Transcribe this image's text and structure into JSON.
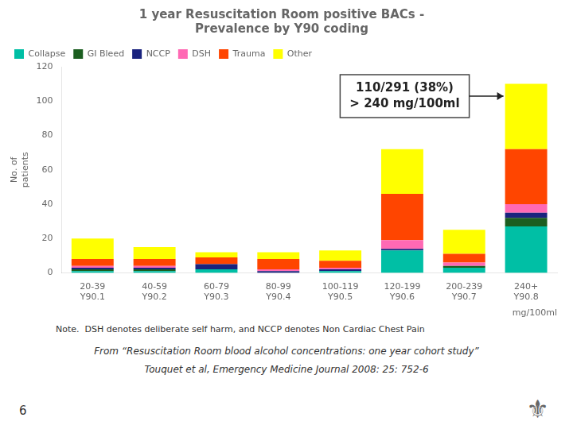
{
  "chart_data": {
    "type": "bar",
    "stacked": true,
    "title": "1 year Resuscitation Room positive BACs -\nPrevalence by Y90 coding",
    "categories": [
      "20-39",
      "40-59",
      "60-79",
      "80-99",
      "100-119",
      "120-199",
      "200-239",
      "240+"
    ],
    "category_codes": [
      "Y90.1",
      "Y90.2",
      "Y90.3",
      "Y90.4",
      "Y90.5",
      "Y90.6",
      "Y90.7",
      "Y90.8"
    ],
    "xlabel": "mg/100ml",
    "ylabel": "No. of\npatients",
    "ylim": [
      0,
      120
    ],
    "yticks": [
      0,
      20,
      40,
      60,
      80,
      100,
      120
    ],
    "grid": false,
    "legend": "upper left",
    "series": [
      {
        "name": "Collapse",
        "color": "#00BFA5",
        "values": [
          1,
          1,
          2,
          0,
          1,
          13,
          3,
          27
        ]
      },
      {
        "name": "GI Bleed",
        "color": "#1B5E20",
        "values": [
          1,
          1,
          0,
          0,
          0,
          0,
          1,
          5
        ]
      },
      {
        "name": "NCCP",
        "color": "#1A237E",
        "values": [
          1,
          1,
          3,
          1,
          1,
          1,
          0,
          3
        ]
      },
      {
        "name": "DSH",
        "color": "#FF69B4",
        "values": [
          1,
          1,
          0,
          1,
          1,
          5,
          2,
          5
        ]
      },
      {
        "name": "Trauma",
        "color": "#FF4500",
        "values": [
          4,
          4,
          4,
          6,
          4,
          27,
          5,
          32
        ]
      },
      {
        "name": "Other",
        "color": "#FFFF00",
        "values": [
          12,
          7,
          3,
          4,
          6,
          26,
          14,
          38
        ]
      }
    ],
    "annotations": [
      "110/291 (38%)\n> 240 mg/100ml"
    ],
    "note": "Note.  DSH denotes deliberate self harm, and NCCP denotes Non Cardiac Chest Pain",
    "footnotes": [
      "From “Resuscitation Room blood alcohol concentrations: one year cohort study”",
      "Touquet et al, Emergency Medicine Journal 2008: 25: 752-6"
    ],
    "slide_number": "6",
    "logo": "⚜"
  }
}
